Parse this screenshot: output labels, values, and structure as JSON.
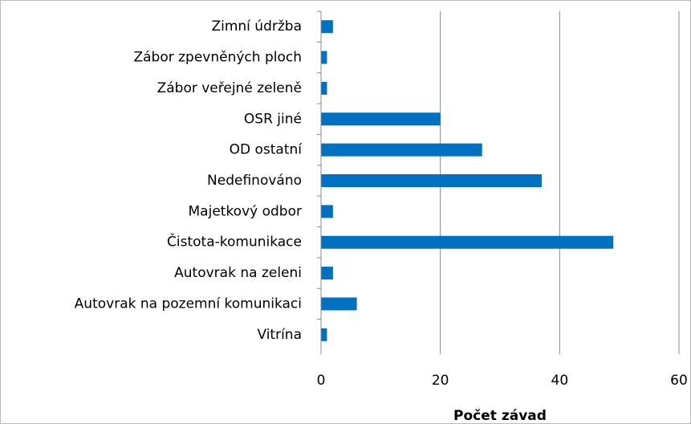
{
  "chart_data": {
    "type": "bar",
    "orientation": "horizontal",
    "categories": [
      "Zimní údržba",
      "Zábor zpevněných ploch",
      "Zábor veřejné zeleně",
      "OSR jiné",
      "OD ostatní",
      "Nedefinováno",
      "Majetkový odbor",
      "Čistota-komunikace",
      "Autovrak na zeleni",
      "Autovrak na pozemní komunikaci",
      "Vitrína"
    ],
    "values": [
      2,
      1,
      1,
      20,
      27,
      37,
      2,
      49,
      2,
      6,
      1
    ],
    "color": "#0070c0",
    "x_label": "Počet závad",
    "xlim": [
      0,
      60
    ],
    "xticks": [
      0,
      20,
      40,
      60
    ],
    "grid": true
  }
}
